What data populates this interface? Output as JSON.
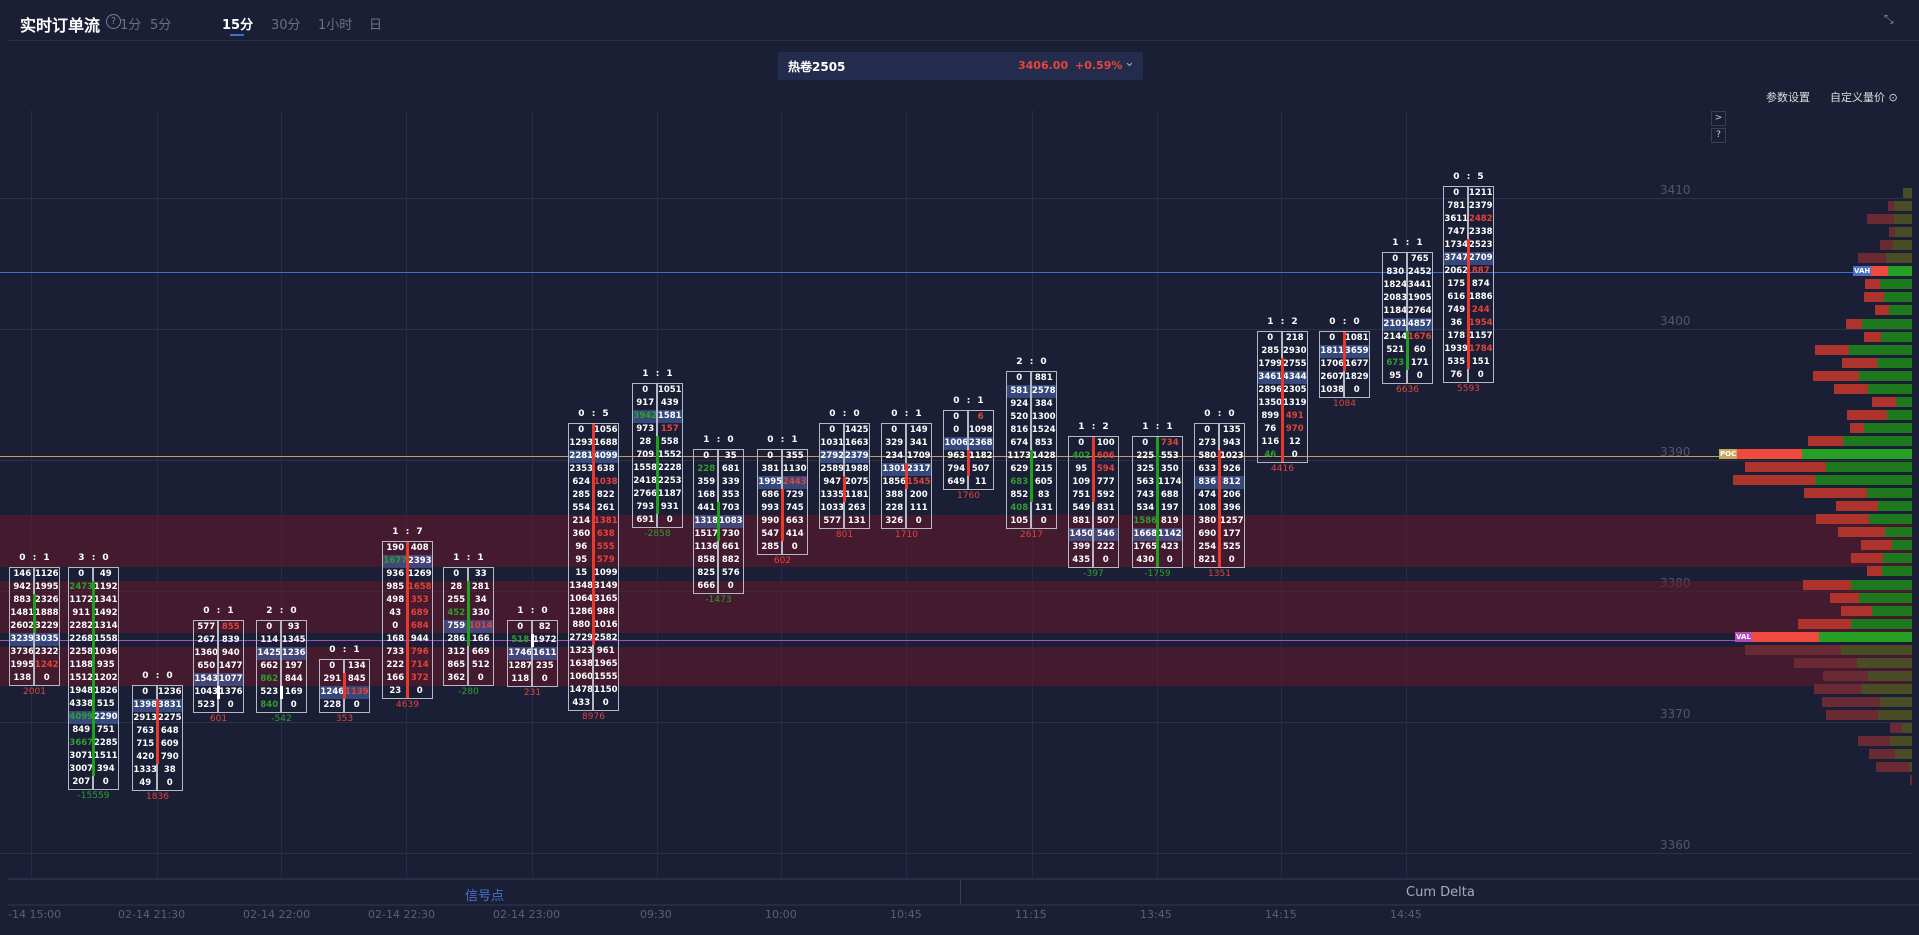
{
  "header": {
    "title": "实时订单流",
    "help": "?",
    "tabs": [
      "1分",
      "5分",
      "15分",
      "30分",
      "1小时",
      "日"
    ],
    "active_tab": "15分"
  },
  "symbol": {
    "name": "热卷2505",
    "price": "3406.00",
    "change": "+0.59%"
  },
  "toolbar": {
    "params": "参数设置",
    "custom": "自定义量价 ⊙",
    "expand": ">",
    "help": "?"
  },
  "colors": {
    "bg": "#1b1f36",
    "up": "#e0443c",
    "down": "#2f9e2f",
    "poc_line": "#b8a25a",
    "vah_line": "#3d6ed8",
    "val_line": "#a64fc0"
  },
  "y_axis": [
    3410,
    3400,
    3390,
    3380,
    3370,
    3360
  ],
  "x_axis": [
    "-14 15:00",
    "02-14 21:30",
    "02-14 22:00",
    "02-14 22:30",
    "02-14 23:00",
    "09:30",
    "10:00",
    "10:45",
    "11:15",
    "13:45",
    "14:15",
    "14:45"
  ],
  "bottom_tabs": {
    "signal": "信号点",
    "cum_delta": "Cum Delta"
  },
  "profile": {
    "labels": {
      "vah": "VAH",
      "poc": "POC",
      "val": "VAL"
    },
    "vah_index": 6,
    "poc_index": 20,
    "val_index": 34,
    "levels": [
      [
        0,
        9
      ],
      [
        6,
        18
      ],
      [
        27,
        18
      ],
      [
        6,
        17
      ],
      [
        13,
        19
      ],
      [
        28,
        26
      ],
      [
        22,
        24
      ],
      [
        15,
        32
      ],
      [
        20,
        28
      ],
      [
        14,
        23
      ],
      [
        16,
        50
      ],
      [
        17,
        31
      ],
      [
        34,
        63
      ],
      [
        35,
        35
      ],
      [
        46,
        53
      ],
      [
        34,
        44
      ],
      [
        24,
        16
      ],
      [
        40,
        25
      ],
      [
        14,
        48
      ],
      [
        35,
        69
      ],
      [
        70,
        110
      ],
      [
        81,
        86
      ],
      [
        82,
        97
      ],
      [
        63,
        45
      ],
      [
        42,
        34
      ],
      [
        53,
        43
      ],
      [
        47,
        27
      ],
      [
        31,
        20
      ],
      [
        32,
        29
      ],
      [
        15,
        30
      ],
      [
        48,
        61
      ],
      [
        29,
        53
      ],
      [
        31,
        40
      ],
      [
        53,
        61
      ],
      [
        71,
        93
      ],
      [
        96,
        71
      ],
      [
        63,
        55
      ],
      [
        45,
        44
      ],
      [
        47,
        51
      ],
      [
        58,
        32
      ],
      [
        52,
        34
      ],
      [
        12,
        10
      ],
      [
        32,
        22
      ],
      [
        26,
        17
      ],
      [
        33,
        3
      ],
      [
        2,
        0
      ]
    ]
  },
  "columns": [
    {
      "label": "0 : 1",
      "bid": [
        146,
        942,
        883,
        1481,
        2602,
        3239,
        3736,
        1995,
        138
      ],
      "ask": [
        1126,
        1995,
        2326,
        1888,
        3229,
        3035,
        2322,
        1242,
        0
      ],
      "poc": 5,
      "green_bid": [],
      "red_ask": [
        7
      ],
      "bar": [
        "green",
        2,
        4
      ],
      "delta": "2001"
    },
    {
      "label": "3 : 0",
      "bid": [
        0,
        2473,
        1172,
        911,
        2282,
        2268,
        2258,
        1188,
        1512,
        1948,
        4338,
        4099,
        849,
        3667,
        3071,
        3007,
        207
      ],
      "ask": [
        49,
        1192,
        1341,
        1492,
        1314,
        1558,
        1036,
        935,
        1202,
        1826,
        515,
        2290,
        751,
        2285,
        1511,
        394,
        0
      ],
      "poc": 11,
      "green_bid": [
        1,
        11,
        13
      ],
      "red_ask": [],
      "bar": [
        "green",
        1,
        15
      ],
      "delta": "-15559"
    },
    {
      "label": "0 : 0",
      "bid": [
        0,
        1398,
        2913,
        763,
        715,
        420,
        1333,
        49
      ],
      "ask": [
        1236,
        3831,
        2275,
        648,
        609,
        790,
        38,
        0
      ],
      "poc": 1,
      "green_bid": [],
      "red_ask": [],
      "bar": [
        "red",
        1,
        5
      ],
      "delta": "1836"
    },
    {
      "label": "0 : 1",
      "bid": [
        577,
        267,
        1360,
        650,
        1543,
        1043,
        523
      ],
      "ask": [
        855,
        839,
        940,
        1477,
        1077,
        1376,
        0
      ],
      "poc": 4,
      "green_bid": [],
      "red_ask": [
        0
      ],
      "bar": [
        "white",
        5,
        5
      ],
      "delta": "601"
    },
    {
      "label": "2 : 0",
      "bid": [
        0,
        114,
        1425,
        662,
        862,
        523,
        840
      ],
      "ask": [
        93,
        1345,
        1236,
        197,
        844,
        169,
        0
      ],
      "poc": 2,
      "green_bid": [
        4,
        6
      ],
      "red_ask": [],
      "bar": [
        "white",
        5,
        5
      ],
      "delta": "-542"
    },
    {
      "label": "0 : 1",
      "bid": [
        0,
        291,
        1246,
        228
      ],
      "ask": [
        134,
        845,
        1139,
        0
      ],
      "poc": 2,
      "green_bid": [],
      "red_ask": [
        2
      ],
      "bar": [
        "red",
        1,
        2
      ],
      "delta": "353"
    },
    {
      "label": "1 : 7",
      "bid": [
        190,
        1677,
        936,
        985,
        498,
        43,
        0,
        168,
        733,
        222,
        166,
        23
      ],
      "ask": [
        408,
        2393,
        1269,
        1658,
        353,
        689,
        684,
        944,
        796,
        714,
        372,
        0
      ],
      "poc": 1,
      "green_bid": [
        1
      ],
      "red_ask": [
        3,
        4,
        5,
        6,
        8,
        9,
        10
      ],
      "bar": [
        "red",
        0,
        11
      ],
      "delta": "4639"
    },
    {
      "label": "1 : 1",
      "bid": [
        0,
        28,
        255,
        452,
        759,
        286,
        312,
        865,
        362
      ],
      "ask": [
        33,
        281,
        34,
        330,
        1014,
        166,
        669,
        512,
        0
      ],
      "poc": 4,
      "green_bid": [
        3
      ],
      "red_ask": [
        4
      ],
      "bar": [
        "green",
        1,
        5
      ],
      "delta": "-280"
    },
    {
      "label": "1 : 0",
      "bid": [
        0,
        518,
        1746,
        1287,
        118
      ],
      "ask": [
        82,
        1972,
        1611,
        235,
        0
      ],
      "poc": 2,
      "green_bid": [
        1
      ],
      "red_ask": [],
      "bar": [
        "white",
        1,
        1
      ],
      "delta": "231"
    },
    {
      "label": "0 : 5",
      "bid": [
        0,
        1293,
        2281,
        2353,
        624,
        285,
        554,
        214,
        360,
        96,
        95,
        15,
        1348,
        1064,
        1286,
        880,
        2729,
        1323,
        1638,
        1060,
        1478,
        433
      ],
      "ask": [
        1056,
        1688,
        4099,
        638,
        1038,
        822,
        261,
        1381,
        638,
        555,
        579,
        1099,
        3149,
        3165,
        988,
        1016,
        2582,
        961,
        1965,
        1555,
        1150,
        0
      ],
      "poc": 2,
      "green_bid": [],
      "red_ask": [
        4,
        7,
        8,
        9,
        10
      ],
      "bar": [
        "red",
        0,
        16
      ],
      "delta": "8976"
    },
    {
      "label": "1 : 1",
      "bid": [
        0,
        917,
        3942,
        973,
        28,
        709,
        1558,
        2418,
        2766,
        793,
        691
      ],
      "ask": [
        1051,
        439,
        1581,
        157,
        558,
        1552,
        2228,
        2253,
        1187,
        931,
        0
      ],
      "poc": 2,
      "green_bid": [
        2
      ],
      "red_ask": [
        3
      ],
      "bar": [
        "green",
        4,
        9
      ],
      "delta": "-2858"
    },
    {
      "label": "1 : 0",
      "bid": [
        0,
        228,
        359,
        168,
        441,
        1318,
        1517,
        1136,
        858,
        825,
        666
      ],
      "ask": [
        35,
        681,
        339,
        353,
        703,
        1083,
        730,
        661,
        882,
        576,
        0
      ],
      "poc": 5,
      "green_bid": [
        1
      ],
      "red_ask": [],
      "bar": [
        "green",
        4,
        6
      ],
      "delta": "-1473"
    },
    {
      "label": "0 : 1",
      "bid": [
        0,
        381,
        1995,
        686,
        993,
        990,
        547,
        285
      ],
      "ask": [
        355,
        1130,
        2443,
        729,
        745,
        663,
        414,
        0
      ],
      "poc": 2,
      "green_bid": [],
      "red_ask": [
        2
      ],
      "bar": [
        "red",
        3,
        6
      ],
      "delta": "602"
    },
    {
      "label": "0 : 0",
      "bid": [
        0,
        1031,
        2792,
        2589,
        947,
        1335,
        1033,
        577
      ],
      "ask": [
        1425,
        1663,
        2379,
        1988,
        2075,
        1181,
        263,
        131
      ],
      "poc": 2,
      "green_bid": [],
      "red_ask": [],
      "bar": [
        "red",
        4,
        5
      ],
      "delta": "801"
    },
    {
      "label": "0 : 1",
      "bid": [
        0,
        329,
        234,
        1301,
        1856,
        388,
        228,
        326
      ],
      "ask": [
        149,
        341,
        1709,
        2317,
        1545,
        200,
        111,
        0
      ],
      "poc": 3,
      "green_bid": [],
      "red_ask": [
        4
      ],
      "bar": [
        "red",
        3,
        4
      ],
      "delta": "1710"
    },
    {
      "label": "0 : 1",
      "bid": [
        0,
        0,
        1006,
        963,
        794,
        649
      ],
      "ask": [
        6,
        1098,
        2368,
        1182,
        507,
        11
      ],
      "poc": 2,
      "green_bid": [],
      "red_ask": [
        0
      ],
      "bar": [
        "red",
        3,
        4
      ],
      "delta": "1760"
    },
    {
      "label": "2 : 0",
      "bid": [
        0,
        581,
        924,
        520,
        816,
        674,
        1173,
        629,
        683,
        852,
        408,
        105
      ],
      "ask": [
        881,
        2578,
        384,
        1300,
        1524,
        853,
        1428,
        215,
        605,
        83,
        131,
        0
      ],
      "poc": 1,
      "green_bid": [
        8,
        10
      ],
      "red_ask": [],
      "bar": [
        "green",
        6,
        9
      ],
      "delta": "2617"
    },
    {
      "label": "1 : 2",
      "bid": [
        0,
        402,
        95,
        109,
        751,
        549,
        881,
        1450,
        399,
        435
      ],
      "ask": [
        100,
        606,
        594,
        777,
        592,
        831,
        507,
        546,
        222,
        0
      ],
      "poc": 7,
      "green_bid": [
        1
      ],
      "red_ask": [
        1,
        2
      ],
      "bar": [
        "red",
        0,
        4
      ],
      "delta": "-397"
    },
    {
      "label": "1 : 1",
      "bid": [
        0,
        225,
        325,
        563,
        743,
        534,
        1586,
        1668,
        1765,
        430
      ],
      "ask": [
        734,
        553,
        350,
        1174,
        688,
        197,
        819,
        1142,
        423,
        0
      ],
      "poc": 7,
      "green_bid": [
        6
      ],
      "red_ask": [
        0
      ],
      "bar": [
        "green",
        0,
        9
      ],
      "delta": "-1759"
    },
    {
      "label": "0 : 0",
      "bid": [
        0,
        273,
        580,
        633,
        836,
        474,
        108,
        380,
        690,
        254,
        821
      ],
      "ask": [
        135,
        943,
        1023,
        926,
        812,
        206,
        396,
        1257,
        177,
        525,
        0
      ],
      "poc": 4,
      "green_bid": [],
      "red_ask": [],
      "bar": [
        "red",
        2,
        10
      ],
      "delta": "1351"
    },
    {
      "label": "1 : 2",
      "bid": [
        0,
        285,
        1799,
        3461,
        2896,
        1350,
        899,
        76,
        116,
        46
      ],
      "ask": [
        218,
        2930,
        2755,
        4344,
        2305,
        1319,
        491,
        970,
        12,
        0
      ],
      "poc": 3,
      "green_bid": [
        9
      ],
      "red_ask": [
        6,
        7
      ],
      "bar": [
        "red",
        2,
        9
      ],
      "delta": "4416"
    },
    {
      "label": "0 : 0",
      "bid": [
        0,
        1811,
        1706,
        2607,
        1038
      ],
      "ask": [
        1081,
        3659,
        1677,
        1829,
        0
      ],
      "poc": 1,
      "green_bid": [],
      "red_ask": [],
      "bar": [
        "red",
        0,
        2
      ],
      "delta": "1084"
    },
    {
      "label": "1 : 1",
      "bid": [
        0,
        830,
        1824,
        2083,
        1184,
        2101,
        2144,
        521,
        673,
        95
      ],
      "ask": [
        765,
        2452,
        3441,
        1905,
        2764,
        4857,
        1676,
        60,
        171,
        0
      ],
      "poc": 5,
      "green_bid": [
        8
      ],
      "red_ask": [
        6
      ],
      "bar": [
        "green",
        6,
        8
      ],
      "delta": "6636"
    },
    {
      "label": "0 : 5",
      "bid": [
        0,
        781,
        3611,
        747,
        1734,
        3747,
        2062,
        175,
        616,
        749,
        36,
        178,
        1939,
        535,
        76
      ],
      "ask": [
        1211,
        2379,
        2482,
        2338,
        2523,
        2709,
        887,
        874,
        1886,
        244,
        1954,
        1157,
        1784,
        151,
        0
      ],
      "poc": 5,
      "green_bid": [],
      "red_ask": [
        2,
        6,
        9,
        10,
        12
      ],
      "bar": [
        "red",
        4,
        13
      ],
      "delta": "5593"
    }
  ]
}
